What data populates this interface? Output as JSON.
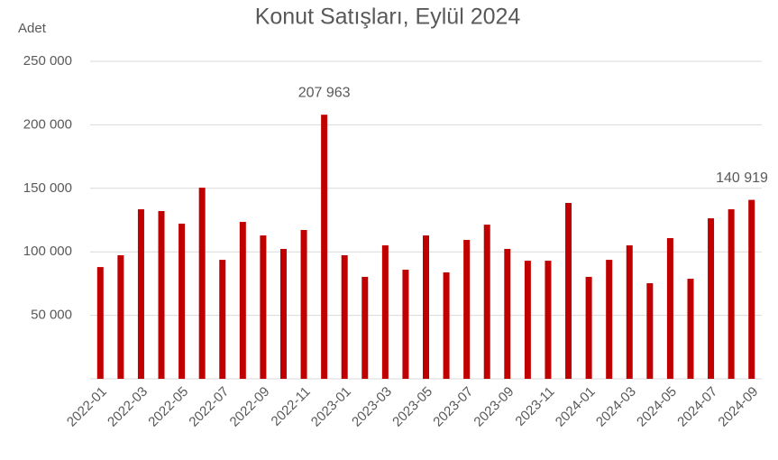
{
  "chart_data": {
    "type": "bar",
    "title": "Konut Satışları, Eylül 2024",
    "y_axis_label": "Adet",
    "categories": [
      "2022-01",
      null,
      "2022-03",
      null,
      "2022-05",
      null,
      "2022-07",
      null,
      "2022-09",
      null,
      "2022-11",
      null,
      "2023-01",
      null,
      "2023-03",
      null,
      "2023-05",
      null,
      "2023-07",
      null,
      "2023-09",
      null,
      "2023-11",
      null,
      "2024-01",
      null,
      "2024-03",
      null,
      "2024-05",
      null,
      "2024-07",
      null,
      "2024-09"
    ],
    "values": [
      88000,
      97300,
      133500,
      132100,
      122200,
      150500,
      93700,
      123600,
      112900,
      102300,
      117200,
      207963,
      97300,
      80300,
      105100,
      85900,
      112900,
      83800,
      109400,
      121400,
      102300,
      93000,
      93000,
      138500,
      80300,
      93700,
      105100,
      75300,
      110800,
      78800,
      126400,
      133500,
      140919
    ],
    "value_labels": [
      null,
      null,
      null,
      null,
      null,
      null,
      null,
      null,
      null,
      null,
      null,
      "207 963",
      null,
      null,
      null,
      null,
      null,
      null,
      null,
      null,
      null,
      null,
      null,
      null,
      null,
      null,
      null,
      null,
      null,
      null,
      null,
      null,
      "140 919"
    ],
    "color": "#c00000",
    "ylim": [
      0,
      250000
    ],
    "yticks": [
      {
        "value": 50000,
        "label": "50 000"
      },
      {
        "value": 100000,
        "label": "100 000"
      },
      {
        "value": 150000,
        "label": "150 000"
      },
      {
        "value": 200000,
        "label": "200 000"
      },
      {
        "value": 250000,
        "label": "250 000"
      }
    ],
    "grid": true
  }
}
